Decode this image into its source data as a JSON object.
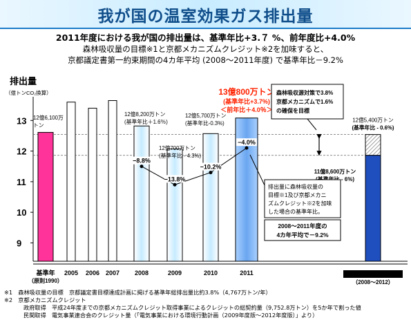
{
  "title": "我が国の温室効果ガス排出量",
  "headline": {
    "line1": "2011年度における我が国の排出量は、基準年比+3.７ %、前年度比+4.0%",
    "line2": "森林吸収量の目標※1と京都メカニズムクレジット※2を加味すると、",
    "line3": "京都議定書第一約束期間の4カ年平均 (2008～2011年度) で基準年比－9.2%"
  },
  "chart_data": {
    "type": "bar",
    "ylabel": "排出量",
    "yunit": "（億トンCO₂換算）",
    "ylim": [
      8.4,
      14.0
    ],
    "yticks": [
      9,
      10,
      11,
      12,
      13
    ],
    "categories": [
      "基準年",
      "2005",
      "2006",
      "2007",
      "2008",
      "2009",
      "2010",
      "2011"
    ],
    "category_sublabel": "（原則1990）",
    "values": [
      12.61,
      13.6,
      13.4,
      13.65,
      12.82,
      12.07,
      12.57,
      13.08
    ],
    "line_series": {
      "categories": [
        "2008",
        "2009",
        "2010",
        "2011"
      ],
      "values": [
        11.5,
        10.9,
        11.3,
        12.1
      ],
      "labels": [
        "−8.8%",
        "−13.8%",
        "−10.2%",
        "−4.0%"
      ]
    },
    "bar_labels": [
      {
        "category": "基準年",
        "lines": [
          "12億6,100万",
          "トン"
        ]
      },
      {
        "category": "2008",
        "lines": [
          "12億8,200万トン",
          "(基準年比＋1.6％)"
        ]
      },
      {
        "category": "2009",
        "lines": [
          "12億700万トン",
          "(基準年比 - 4.3%)"
        ]
      },
      {
        "category": "2010",
        "lines": [
          "12億5,700万トン",
          "(基準年比-0.3%)"
        ]
      }
    ],
    "highlight": {
      "category": "2011",
      "value": "13億800万トン",
      "sub1": "(基準年比+3.7%)",
      "sub2": "＜前年比＋4.0％＞"
    },
    "kyoto_target": {
      "label": "京都議定書削減約束",
      "period": "（2008～2012）",
      "total_value": 12.54,
      "base_value": 11.86,
      "upper_label": [
        "12億5,400万トン",
        "(基準年比 - 0.6%)"
      ],
      "lower_label": [
        "11億8,600万トン",
        "(基準年比 - 6%)"
      ]
    },
    "dashed_lines": [
      12.54,
      11.86
    ],
    "annotations": {
      "forest_box": [
        "森林吸収源対策で3.8%",
        "京都メカニズムで1.6%",
        "の確保を目標"
      ],
      "note_box": [
        "排出量に森林吸収量の",
        "目標※1及び京都メカニ",
        "ズムクレジット※2を加味",
        "した場合の基準年比。"
      ],
      "avg_box": [
        "2008～2011年度の",
        "4カ年平均で－9.2%"
      ]
    },
    "colors": {
      "base_bar": "#ff3399",
      "hollow_bar": "#ffffff",
      "period_bar": "#ffffff",
      "period_bar_gradient": "#bfe6ff",
      "highlight_bar": "#7fb4f5",
      "highlight_text": "#ff2200",
      "kyoto_blue": "#1f4fbf",
      "kyoto_hatch": "#888888"
    }
  },
  "footnotes": [
    "※1　森林吸収量の目標　京都議定書目標達成計画に掲げる基準年総排出量比約3.8%（4,767万トン/年）",
    "※2　京都メカニズムクレジット",
    "政府取得　平成24年度までの京都メカニズムクレジット取得事業によるクレジットの総契約量（9,752.8万トン）を5か年で割った値",
    "民間取得　電気事業連合会のクレジット量（「電気事業における環境行動計画（2009年度版～2012年度版）」より）"
  ]
}
